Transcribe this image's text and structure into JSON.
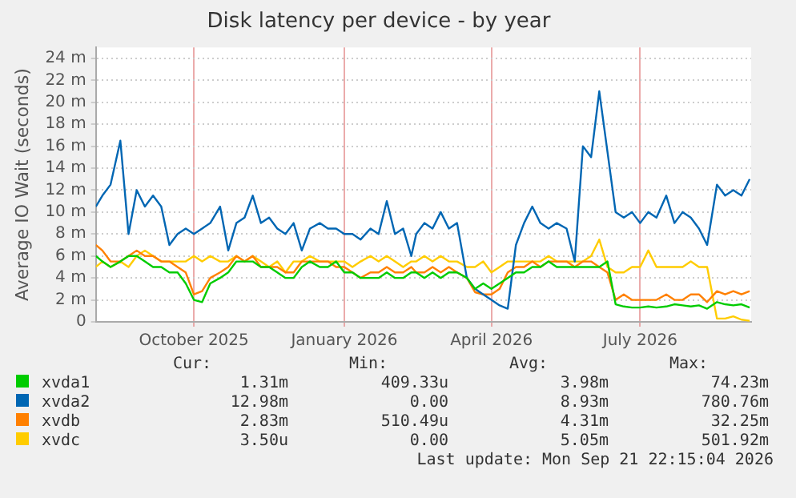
{
  "chart_data": {
    "type": "line",
    "title": "Disk latency per device - by year",
    "ylabel": "Average IO Wait (seconds)",
    "x": [
      "2025-08-17",
      "2025-08-21",
      "2025-08-26",
      "2025-09-01",
      "2025-09-06",
      "2025-09-11",
      "2025-09-16",
      "2025-09-21",
      "2025-09-26",
      "2025-10-01",
      "2025-10-06",
      "2025-10-11",
      "2025-10-16",
      "2025-10-21",
      "2025-10-26",
      "2025-11-01",
      "2025-11-06",
      "2025-11-11",
      "2025-11-16",
      "2025-11-21",
      "2025-11-26",
      "2025-12-01",
      "2025-12-06",
      "2025-12-11",
      "2025-12-16",
      "2025-12-21",
      "2025-12-26",
      "2026-01-01",
      "2026-01-06",
      "2026-01-11",
      "2026-01-16",
      "2026-01-21",
      "2026-01-26",
      "2026-02-01",
      "2026-02-06",
      "2026-02-11",
      "2026-02-16",
      "2026-02-21",
      "2026-02-26",
      "2026-03-01",
      "2026-03-06",
      "2026-03-11",
      "2026-03-16",
      "2026-03-21",
      "2026-03-26",
      "2026-04-01",
      "2026-04-06",
      "2026-04-11",
      "2026-04-16",
      "2026-04-21",
      "2026-04-26",
      "2026-05-01",
      "2026-05-06",
      "2026-05-11",
      "2026-05-16",
      "2026-05-21",
      "2026-05-26",
      "2026-06-01",
      "2026-06-06",
      "2026-06-11",
      "2026-06-16",
      "2026-06-21",
      "2026-06-26",
      "2026-07-01",
      "2026-07-06",
      "2026-07-11",
      "2026-07-16",
      "2026-07-21",
      "2026-07-26",
      "2026-08-01",
      "2026-08-06",
      "2026-08-11",
      "2026-08-16",
      "2026-08-21",
      "2026-08-26",
      "2026-09-01",
      "2026-09-06",
      "2026-09-11",
      "2026-09-16",
      "2026-09-21"
    ],
    "series": [
      {
        "name": "xvda1",
        "color": "#00cc00",
        "values": [
          6,
          5.5,
          5,
          5.5,
          6,
          6,
          5.5,
          5,
          5,
          4.5,
          4.5,
          3.5,
          2,
          1.8,
          3.5,
          4,
          4.5,
          5.5,
          5.5,
          5.5,
          5,
          5,
          4.5,
          4,
          4,
          5,
          5.5,
          5,
          5,
          5.5,
          4.5,
          4.5,
          4,
          4,
          4,
          4.5,
          4,
          4,
          4.5,
          4.5,
          4,
          4.5,
          4,
          4.5,
          4.5,
          4,
          3,
          3.5,
          3,
          3.5,
          4,
          4.5,
          4.5,
          5,
          5,
          5.5,
          5,
          5,
          5,
          5,
          5,
          5,
          5.5,
          1.6,
          1.4,
          1.3,
          1.3,
          1.4,
          1.3,
          1.4,
          1.6,
          1.5,
          1.4,
          1.5,
          1.2,
          1.8,
          1.6,
          1.5,
          1.6,
          1.3
        ]
      },
      {
        "name": "xvda2",
        "color": "#0066b3",
        "values": [
          10.5,
          11.5,
          12.5,
          16.5,
          8,
          12,
          10.5,
          11.5,
          10.5,
          7,
          8,
          8.5,
          8,
          8.5,
          9,
          10.5,
          6.5,
          9,
          9.5,
          11.5,
          9,
          9.5,
          8.5,
          8,
          9,
          6.5,
          8.5,
          9,
          8.5,
          8.5,
          8,
          8,
          7.5,
          8.5,
          8,
          11,
          8,
          8.5,
          6,
          8,
          9,
          8.5,
          10,
          8.5,
          9,
          4,
          3,
          2.5,
          2,
          1.5,
          1.2,
          7,
          9,
          10.5,
          9,
          8.5,
          9,
          8.5,
          5.5,
          16,
          15,
          21,
          15.5,
          10,
          9.5,
          10,
          9,
          10,
          9.5,
          11.5,
          9,
          10,
          9.5,
          8.5,
          7,
          12.5,
          11.5,
          12,
          11.5,
          13
        ]
      },
      {
        "name": "xvdb",
        "color": "#ff8000",
        "values": [
          7,
          6.5,
          5.5,
          5.5,
          6,
          6.5,
          6,
          6,
          5.5,
          5.5,
          5,
          4.5,
          2.5,
          2.8,
          4,
          4.5,
          5,
          6,
          5.5,
          6,
          5,
          5,
          5,
          4.5,
          4.5,
          5.5,
          5.5,
          5.5,
          5.5,
          5,
          5,
          4.5,
          4,
          4.5,
          4.5,
          5,
          4.5,
          4.5,
          5,
          4.5,
          4.5,
          5,
          4.5,
          5,
          4.5,
          4,
          2.7,
          2.5,
          2.5,
          3,
          4.5,
          5,
          5,
          5.5,
          5,
          5.5,
          5.5,
          5.5,
          5,
          5.5,
          5.5,
          5,
          4.5,
          2,
          2.5,
          2,
          2,
          2,
          2,
          2.5,
          2,
          2,
          2.5,
          2.5,
          1.8,
          2.8,
          2.5,
          2.8,
          2.5,
          2.8
        ]
      },
      {
        "name": "xvdc",
        "color": "#ffcc00",
        "values": [
          5,
          5.5,
          5,
          5.5,
          5,
          6,
          6.5,
          6,
          5.5,
          5.5,
          5.5,
          5.5,
          6,
          5.5,
          6,
          5.5,
          5.5,
          6,
          5.5,
          6,
          5.5,
          5,
          5.5,
          4.5,
          5.5,
          5.5,
          6,
          5.5,
          5.5,
          5.5,
          5.5,
          5,
          5.5,
          6,
          5.5,
          6,
          5.5,
          5,
          5.5,
          5.5,
          6,
          5.5,
          6,
          5.5,
          5.5,
          5,
          5,
          5.5,
          4.5,
          5,
          5.5,
          5.5,
          5.5,
          5.5,
          5.5,
          6,
          5.5,
          5.5,
          5.5,
          5.5,
          6,
          7.5,
          5,
          4.5,
          4.5,
          5,
          5,
          6.5,
          5,
          5,
          5,
          5,
          5.5,
          5,
          5,
          0.3,
          0.3,
          0.5,
          0.2,
          0.1
        ]
      }
    ],
    "xlim": [
      "2025-08-17",
      "2026-09-21T22:15"
    ],
    "xticks": [
      {
        "value": "2025-10-16",
        "label": "October 2025"
      },
      {
        "value": "2026-01-16",
        "label": "January 2026"
      },
      {
        "value": "2026-04-16",
        "label": "April 2026"
      },
      {
        "value": "2026-07-16",
        "label": "July 2026"
      }
    ],
    "ylim": [
      0,
      25
    ],
    "yticks": [
      {
        "value": 0,
        "label": "0"
      },
      {
        "value": 2,
        "label": "2 m"
      },
      {
        "value": 4,
        "label": "4 m"
      },
      {
        "value": 6,
        "label": "6 m"
      },
      {
        "value": 8,
        "label": "8 m"
      },
      {
        "value": 10,
        "label": "10 m"
      },
      {
        "value": 12,
        "label": "12 m"
      },
      {
        "value": 14,
        "label": "14 m"
      },
      {
        "value": 16,
        "label": "16 m"
      },
      {
        "value": 18,
        "label": "18 m"
      },
      {
        "value": 20,
        "label": "20 m"
      },
      {
        "value": 22,
        "label": "22 m"
      },
      {
        "value": 24,
        "label": "24 m"
      }
    ],
    "grid": true,
    "legend": "bottom",
    "marker": "none",
    "line_style": "solid",
    "annotations": [
      "Cur:",
      "Min:",
      "Avg:",
      "Max:",
      "1.31m",
      "409.33u",
      "3.98m",
      "74.23m",
      "12.98m",
      "0.00",
      "8.93m",
      "780.76m",
      "2.83m",
      "510.49u",
      "4.31m",
      "32.25m",
      "3.50u",
      "0.00",
      "5.05m",
      "501.92m",
      "Last update: Mon Sep 21 22:15:04 2026"
    ]
  }
}
